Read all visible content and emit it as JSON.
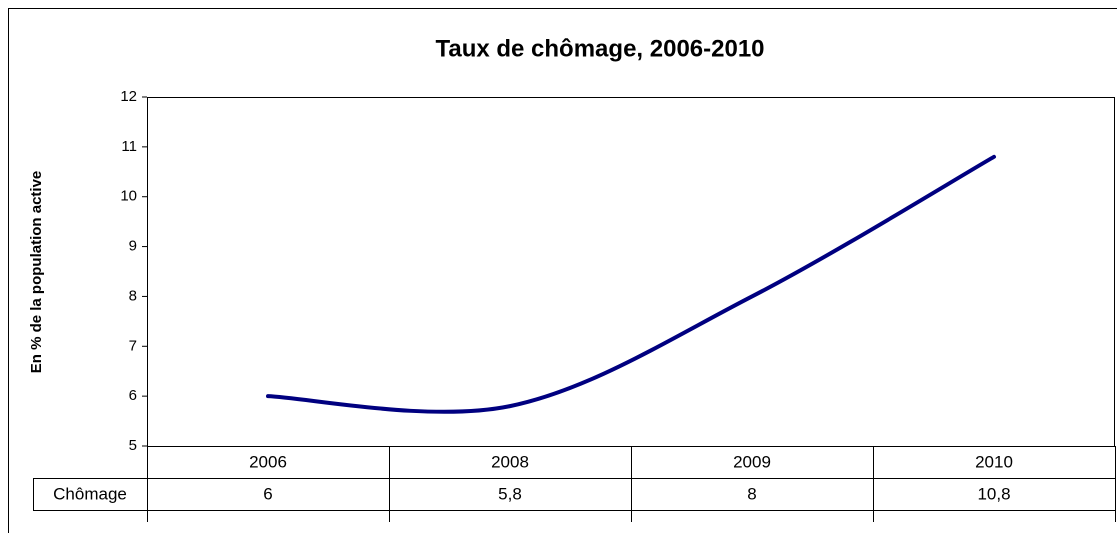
{
  "chart_data": {
    "type": "line",
    "title": "Taux de chômage, 2006-2010",
    "y_label": "En % de la population active",
    "categories": [
      "2006",
      "2008",
      "2009",
      "2010"
    ],
    "series": [
      {
        "name": "Chômage",
        "color": "#000080",
        "values": [
          6,
          5.8,
          8,
          10.8
        ],
        "value_labels": [
          "6",
          "5,8",
          "8",
          "10,8"
        ]
      }
    ],
    "ylim": [
      5,
      12
    ],
    "yticks": [
      5,
      6,
      7,
      8,
      9,
      10,
      11,
      12
    ],
    "smooth": true,
    "data_table": true
  }
}
